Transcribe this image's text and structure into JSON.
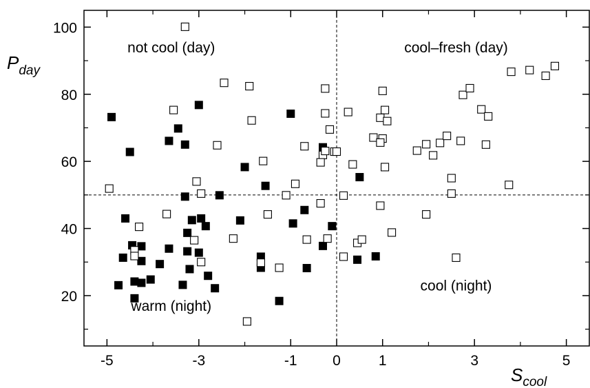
{
  "chart_data": {
    "type": "scatter",
    "title": "",
    "xlabel": {
      "main": "S",
      "sub": "cool"
    },
    "ylabel": {
      "main": "P",
      "sub": "day"
    },
    "xlim": [
      -5.5,
      5.5
    ],
    "ylim": [
      5,
      105
    ],
    "x_ticks": [
      -5,
      -3,
      -1,
      0,
      1,
      3,
      5
    ],
    "y_ticks": [
      20,
      40,
      60,
      80,
      100
    ],
    "x_minor_ticks": [
      -4,
      -2,
      2,
      4
    ],
    "y_minor_ticks": [
      10,
      30,
      50,
      70,
      90
    ],
    "grid": false,
    "reference_lines": {
      "x": 0,
      "y": 50,
      "style": "dashed"
    },
    "quadrant_labels": [
      {
        "text": "not cool (day)",
        "x": -3.6,
        "y": 92.5
      },
      {
        "text": "cool–fresh (day)",
        "x": 2.6,
        "y": 92.5
      },
      {
        "text": "warm (night)",
        "x": -3.6,
        "y": 15.5
      },
      {
        "text": "cool (night)",
        "x": 2.6,
        "y": 21.5
      }
    ],
    "series": [
      {
        "marker": "filled-square",
        "color": "#000000",
        "points": [
          [
            -4.9,
            73.2
          ],
          [
            -4.5,
            62.8
          ],
          [
            -3.45,
            69.8
          ],
          [
            -3.65,
            66.1
          ],
          [
            -3.3,
            65.0
          ],
          [
            -3.0,
            76.8
          ],
          [
            -1.0,
            74.2
          ],
          [
            -0.3,
            64.2
          ],
          [
            -2.0,
            58.3
          ],
          [
            -1.55,
            52.7
          ],
          [
            -3.3,
            49.5
          ],
          [
            -2.55,
            49.9
          ],
          [
            -0.7,
            45.5
          ],
          [
            -0.3,
            34.8
          ],
          [
            -0.1,
            40.7
          ],
          [
            0.5,
            55.3
          ],
          [
            0.45,
            30.7
          ],
          [
            0.85,
            31.7
          ],
          [
            -1.25,
            18.4
          ],
          [
            -0.65,
            28.2
          ],
          [
            -0.95,
            41.5
          ],
          [
            -1.65,
            28.3
          ],
          [
            -1.65,
            31.6
          ],
          [
            -2.1,
            42.4
          ],
          [
            -4.6,
            43.0
          ],
          [
            -4.45,
            35.0
          ],
          [
            -4.25,
            34.7
          ],
          [
            -4.25,
            30.3
          ],
          [
            -4.65,
            31.3
          ],
          [
            -3.65,
            34.0
          ],
          [
            -3.35,
            23.2
          ],
          [
            -3.85,
            29.4
          ],
          [
            -4.05,
            24.8
          ],
          [
            -4.4,
            24.2
          ],
          [
            -4.25,
            23.8
          ],
          [
            -4.4,
            19.2
          ],
          [
            -4.75,
            23.1
          ],
          [
            -3.25,
            38.7
          ],
          [
            -3.15,
            42.5
          ],
          [
            -2.95,
            43.0
          ],
          [
            -2.85,
            40.7
          ],
          [
            -3.0,
            32.8
          ],
          [
            -3.25,
            33.2
          ],
          [
            -3.2,
            27.9
          ],
          [
            -2.8,
            25.9
          ],
          [
            -2.65,
            22.2
          ]
        ]
      },
      {
        "marker": "open-square",
        "color": "#000000",
        "points": [
          [
            -3.3,
            100.1
          ],
          [
            -2.45,
            83.4
          ],
          [
            -1.9,
            82.4
          ],
          [
            -3.55,
            75.3
          ],
          [
            -1.85,
            72.2
          ],
          [
            -2.6,
            64.8
          ],
          [
            -1.6,
            60.1
          ],
          [
            -0.7,
            64.5
          ],
          [
            -0.25,
            81.7
          ],
          [
            -0.25,
            74.3
          ],
          [
            -0.15,
            69.5
          ],
          [
            -0.3,
            61.9
          ],
          [
            -0.35,
            59.7
          ],
          [
            -0.25,
            63.1
          ],
          [
            -0.05,
            62.9
          ],
          [
            0.0,
            62.9
          ],
          [
            0.25,
            74.7
          ],
          [
            0.35,
            59.1
          ],
          [
            -0.9,
            53.3
          ],
          [
            -1.1,
            49.9
          ],
          [
            -2.95,
            50.4
          ],
          [
            -3.05,
            54.0
          ],
          [
            -4.95,
            51.9
          ],
          [
            -3.7,
            44.3
          ],
          [
            -4.3,
            40.5
          ],
          [
            -1.5,
            44.2
          ],
          [
            -0.35,
            47.5
          ],
          [
            -2.25,
            37.0
          ],
          [
            -3.1,
            36.5
          ],
          [
            -4.4,
            33.5
          ],
          [
            -4.4,
            31.8
          ],
          [
            -2.95,
            30.0
          ],
          [
            -1.65,
            29.8
          ],
          [
            -1.25,
            28.3
          ],
          [
            -0.65,
            36.7
          ],
          [
            -0.2,
            37.0
          ],
          [
            0.15,
            49.8
          ],
          [
            0.15,
            31.6
          ],
          [
            0.45,
            35.7
          ],
          [
            0.55,
            36.7
          ],
          [
            -1.95,
            12.3
          ],
          [
            1.0,
            81.0
          ],
          [
            0.95,
            73.0
          ],
          [
            1.05,
            75.3
          ],
          [
            1.1,
            72.0
          ],
          [
            0.8,
            67.1
          ],
          [
            1.0,
            66.8
          ],
          [
            0.95,
            65.6
          ],
          [
            1.05,
            58.3
          ],
          [
            0.95,
            46.8
          ],
          [
            1.2,
            38.8
          ],
          [
            1.75,
            63.2
          ],
          [
            1.95,
            65.1
          ],
          [
            2.1,
            61.8
          ],
          [
            2.25,
            65.5
          ],
          [
            2.4,
            67.6
          ],
          [
            2.7,
            66.1
          ],
          [
            2.75,
            79.8
          ],
          [
            2.9,
            81.8
          ],
          [
            3.15,
            75.5
          ],
          [
            3.3,
            73.4
          ],
          [
            3.25,
            65.0
          ],
          [
            2.5,
            55.0
          ],
          [
            2.5,
            50.4
          ],
          [
            3.75,
            53.0
          ],
          [
            1.95,
            44.2
          ],
          [
            2.6,
            31.3
          ],
          [
            3.8,
            86.7
          ],
          [
            4.2,
            87.2
          ],
          [
            4.55,
            85.5
          ],
          [
            4.75,
            88.4
          ]
        ]
      }
    ]
  }
}
